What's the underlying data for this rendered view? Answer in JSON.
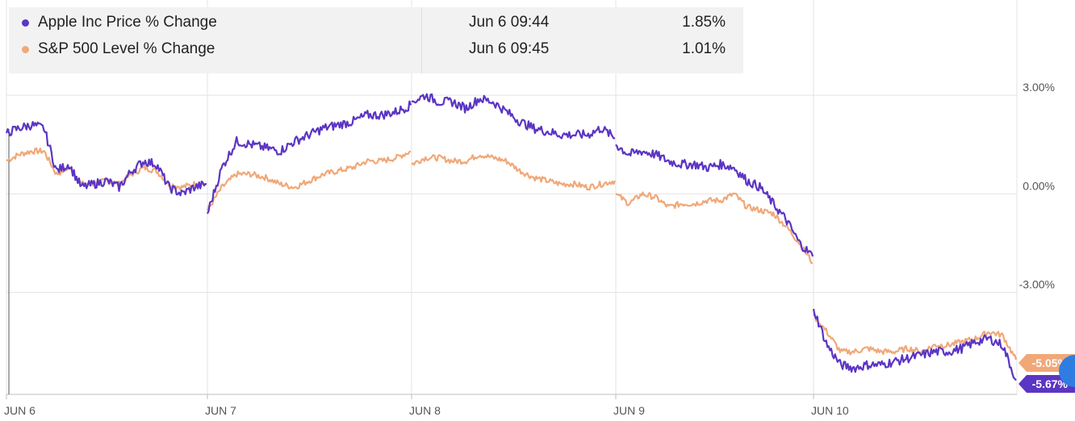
{
  "legend": [
    {
      "name": "Apple Inc Price % Change",
      "time": "Jun 6 09:44",
      "value": "1.85%",
      "color": "#5b35c4"
    },
    {
      "name": "S&P 500 Level % Change",
      "time": "Jun 6 09:45",
      "value": "1.01%",
      "color": "#f0a878"
    }
  ],
  "chart_data": {
    "type": "line",
    "x_tick_labels": [
      "JUN 6",
      "JUN 7",
      "JUN 8",
      "JUN 9",
      "JUN 10"
    ],
    "y_tick_labels": [
      "3.00%",
      "0.00%",
      "-3.00%"
    ],
    "y_ticks": [
      3,
      0,
      -3
    ],
    "ylim": [
      -6.1,
      5.9
    ],
    "grid": true,
    "legend_position": "top-left",
    "series": [
      {
        "name": "Apple Inc Price % Change",
        "color": "#5b35c4",
        "last_value_label": "-5.67%",
        "sessions": [
          [
            1.85,
            2.0,
            2.1,
            2.0,
            0.7,
            0.9,
            0.2,
            0.3,
            0.4,
            0.2,
            0.7,
            1.0,
            0.9,
            0.2,
            0.0,
            0.2,
            0.3
          ],
          [
            -0.6,
            0.8,
            1.6,
            1.5,
            1.4,
            1.3,
            1.6,
            1.8,
            2.0,
            2.1,
            2.2,
            2.4,
            2.4,
            2.5,
            2.7
          ],
          [
            2.8,
            3.0,
            2.8,
            2.8,
            2.6,
            2.9,
            2.8,
            2.5,
            2.2,
            2.0,
            1.9,
            1.8,
            1.8,
            1.8,
            2.0,
            1.7
          ],
          [
            1.5,
            1.2,
            1.3,
            1.2,
            1.0,
            0.9,
            0.9,
            0.8,
            0.9,
            0.8,
            0.4,
            0.2,
            -0.3,
            -0.8,
            -1.5,
            -1.9
          ],
          [
            -3.5,
            -4.6,
            -5.2,
            -5.3,
            -5.2,
            -5.2,
            -5.1,
            -5.0,
            -4.9,
            -4.8,
            -4.8,
            -4.7,
            -4.5,
            -4.4,
            -4.6,
            -5.67
          ]
        ]
      },
      {
        "name": "S&P 500 Level % Change",
        "color": "#f0a878",
        "last_value_label": "-5.05%",
        "sessions": [
          [
            1.01,
            1.2,
            1.3,
            1.3,
            0.6,
            0.8,
            0.3,
            0.3,
            0.4,
            0.3,
            0.6,
            0.8,
            0.7,
            0.3,
            0.2,
            0.3,
            0.3
          ],
          [
            -0.5,
            0.2,
            0.6,
            0.6,
            0.5,
            0.3,
            0.2,
            0.4,
            0.6,
            0.7,
            0.8,
            1.0,
            1.0,
            1.1,
            1.3
          ],
          [
            0.9,
            1.1,
            1.1,
            1.0,
            1.0,
            1.2,
            1.1,
            1.0,
            0.7,
            0.5,
            0.4,
            0.3,
            0.3,
            0.2,
            0.3,
            0.4
          ],
          [
            0.0,
            -0.3,
            0.0,
            -0.1,
            -0.4,
            -0.3,
            -0.3,
            -0.2,
            -0.2,
            0.0,
            -0.4,
            -0.5,
            -0.6,
            -1.0,
            -1.5,
            -2.1
          ],
          [
            -3.7,
            -4.2,
            -4.8,
            -4.8,
            -4.7,
            -4.8,
            -4.8,
            -4.7,
            -4.8,
            -4.6,
            -4.6,
            -4.5,
            -4.4,
            -4.2,
            -4.3,
            -5.05
          ]
        ]
      }
    ]
  }
}
